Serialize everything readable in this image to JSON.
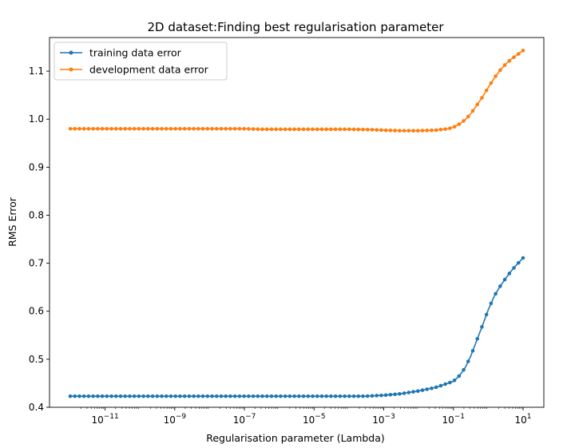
{
  "chart_data": {
    "type": "line",
    "title": "2D dataset:Finding best regularisation parameter",
    "xlabel": "Regularisation parameter (Lambda)",
    "ylabel": "RMS Error",
    "xscale": "log",
    "xlim": [
      1e-12,
      10.0
    ],
    "ylim": [
      0.4,
      1.17
    ],
    "x_ticks": [
      {
        "value": 1e-11,
        "base": "10",
        "exp": "−11"
      },
      {
        "value": 1e-09,
        "base": "10",
        "exp": "−9"
      },
      {
        "value": 1e-07,
        "base": "10",
        "exp": "−7"
      },
      {
        "value": 1e-05,
        "base": "10",
        "exp": "−5"
      },
      {
        "value": 0.001,
        "base": "10",
        "exp": "−3"
      },
      {
        "value": 0.1,
        "base": "10",
        "exp": "−1"
      },
      {
        "value": 10.0,
        "base": "10",
        "exp": "1"
      }
    ],
    "y_ticks": [
      {
        "value": 0.4,
        "label": "0.4"
      },
      {
        "value": 0.5,
        "label": "0.5"
      },
      {
        "value": 0.6,
        "label": "0.6"
      },
      {
        "value": 0.7,
        "label": "0.7"
      },
      {
        "value": 0.8,
        "label": "0.8"
      },
      {
        "value": 0.9,
        "label": "0.9"
      },
      {
        "value": 1.0,
        "label": "1.0"
      },
      {
        "value": 1.1,
        "label": "1.1"
      }
    ],
    "grid": false,
    "legend_position": "top-left",
    "series": [
      {
        "name": "training data error",
        "color": "#1f77b4",
        "marker": "circle",
        "points": [
          [
            1e-12,
            0.423
          ],
          [
            1e-11,
            0.423
          ],
          [
            1e-10,
            0.423
          ],
          [
            1e-09,
            0.423
          ],
          [
            1e-08,
            0.423
          ],
          [
            1e-07,
            0.423
          ],
          [
            1e-06,
            0.423
          ],
          [
            1e-05,
            0.423
          ],
          [
            0.0001,
            0.423
          ],
          [
            0.0003,
            0.423
          ],
          [
            0.001,
            0.425
          ],
          [
            0.003,
            0.428
          ],
          [
            0.01,
            0.434
          ],
          [
            0.03,
            0.441
          ],
          [
            0.1,
            0.454
          ],
          [
            0.15,
            0.466
          ],
          [
            0.22,
            0.483
          ],
          [
            0.32,
            0.508
          ],
          [
            0.46,
            0.538
          ],
          [
            0.68,
            0.57
          ],
          [
            1.0,
            0.603
          ],
          [
            1.5,
            0.632
          ],
          [
            2.2,
            0.652
          ],
          [
            3.2,
            0.669
          ],
          [
            4.6,
            0.684
          ],
          [
            6.8,
            0.698
          ],
          [
            10.0,
            0.711
          ]
        ]
      },
      {
        "name": "development data error",
        "color": "#ff7f0e",
        "marker": "circle",
        "points": [
          [
            1e-12,
            0.98
          ],
          [
            1e-11,
            0.98
          ],
          [
            1e-10,
            0.98
          ],
          [
            1e-09,
            0.98
          ],
          [
            1e-08,
            0.98
          ],
          [
            1e-07,
            0.98
          ],
          [
            3e-07,
            0.979
          ],
          [
            1e-06,
            0.979
          ],
          [
            1e-05,
            0.979
          ],
          [
            0.0001,
            0.979
          ],
          [
            0.0005,
            0.978
          ],
          [
            0.001,
            0.977
          ],
          [
            0.003,
            0.976
          ],
          [
            0.01,
            0.976
          ],
          [
            0.03,
            0.977
          ],
          [
            0.07,
            0.98
          ],
          [
            0.1,
            0.983
          ],
          [
            0.15,
            0.99
          ],
          [
            0.22,
            0.999
          ],
          [
            0.32,
            1.012
          ],
          [
            0.46,
            1.028
          ],
          [
            0.68,
            1.046
          ],
          [
            1.0,
            1.066
          ],
          [
            1.5,
            1.086
          ],
          [
            2.2,
            1.102
          ],
          [
            3.2,
            1.115
          ],
          [
            4.6,
            1.125
          ],
          [
            6.8,
            1.134
          ],
          [
            10.0,
            1.143
          ]
        ]
      }
    ]
  }
}
